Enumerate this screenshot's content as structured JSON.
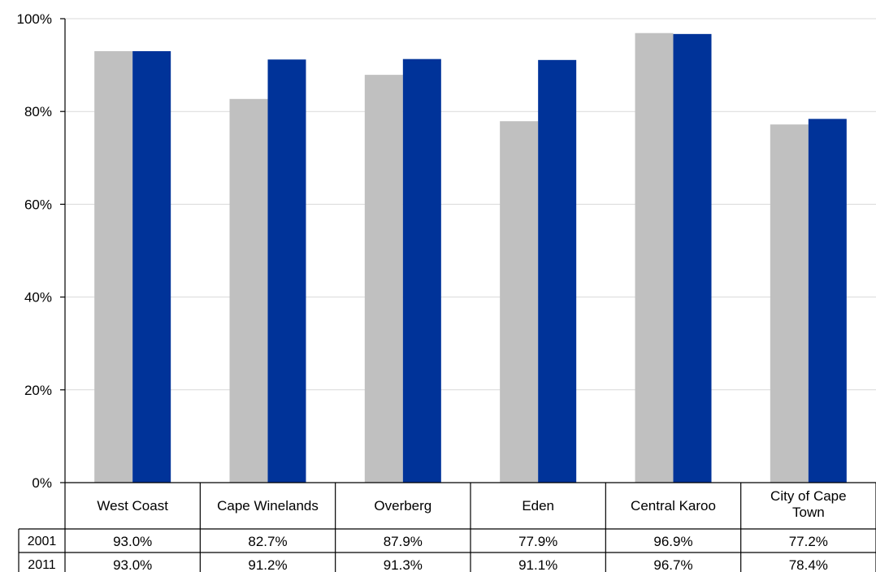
{
  "chart_data": {
    "type": "bar",
    "categories": [
      "West Coast",
      "Cape Winelands",
      "Overberg",
      "Eden",
      "Central Karoo",
      "City of Cape Town"
    ],
    "category_lines": [
      [
        "West Coast"
      ],
      [
        "Cape Winelands"
      ],
      [
        "Overberg"
      ],
      [
        "Eden"
      ],
      [
        "Central Karoo"
      ],
      [
        "City of Cape",
        "Town"
      ]
    ],
    "series": [
      {
        "name": "2001",
        "color": "#c0c0c0",
        "values": [
          93.0,
          82.7,
          87.9,
          77.9,
          96.9,
          77.2
        ]
      },
      {
        "name": "2011",
        "color": "#003399",
        "values": [
          93.0,
          91.2,
          91.3,
          91.1,
          96.7,
          78.4
        ]
      }
    ],
    "data_table": {
      "rows": [
        {
          "label": "2001",
          "cells": [
            "93.0%",
            "82.7%",
            "87.9%",
            "77.9%",
            "96.9%",
            "77.2%"
          ]
        },
        {
          "label": "2011",
          "cells": [
            "93.0%",
            "91.2%",
            "91.3%",
            "91.1%",
            "96.7%",
            "78.4%"
          ]
        }
      ]
    },
    "yticks": [
      0,
      20,
      40,
      60,
      80,
      100
    ],
    "ytick_labels": [
      "0%",
      "20%",
      "40%",
      "60%",
      "80%",
      "100%"
    ],
    "ylim": [
      0,
      100
    ],
    "grid": true,
    "legend": "data table"
  }
}
